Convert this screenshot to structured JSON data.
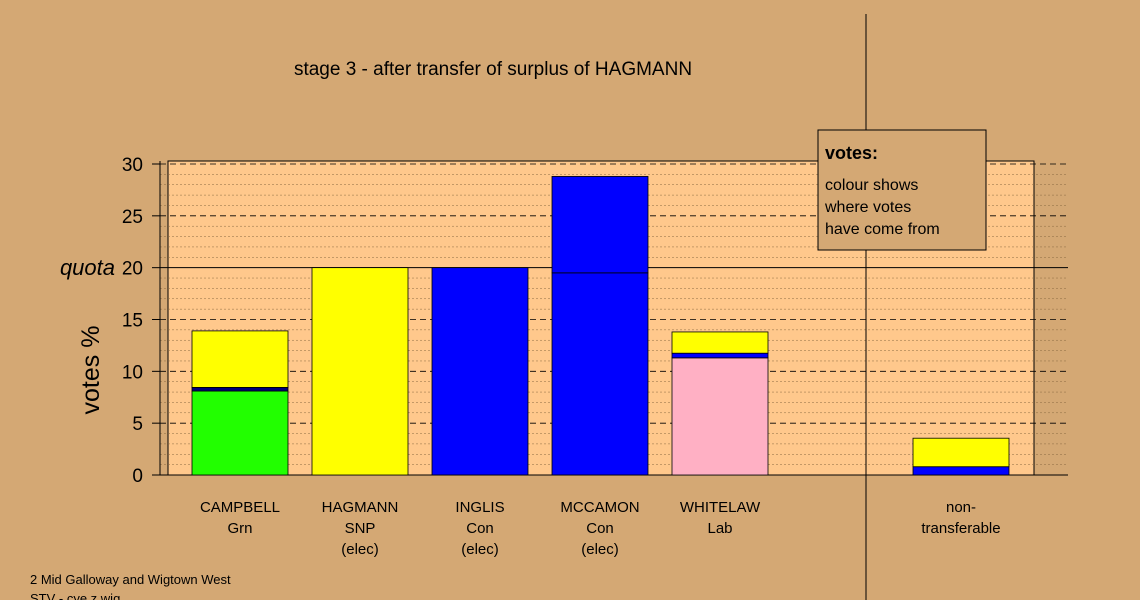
{
  "chart_data": {
    "type": "bar",
    "title": "stage 3 - after transfer of surplus of HAGMANN",
    "ylabel": "votes %",
    "ylim": [
      0,
      30
    ],
    "yticks": [
      0,
      5,
      10,
      15,
      20,
      25,
      30
    ],
    "quota_label": "quota",
    "quota_value": 20,
    "grid": true,
    "categories": [
      {
        "lines": [
          "CAMPBELL",
          "Grn",
          ""
        ]
      },
      {
        "lines": [
          "HAGMANN",
          "SNP",
          "(elec)"
        ]
      },
      {
        "lines": [
          "INGLIS",
          "Con",
          "(elec)"
        ]
      },
      {
        "lines": [
          "MCCAMON",
          "Con",
          "(elec)"
        ]
      },
      {
        "lines": [
          "WHITELAW",
          "Lab",
          ""
        ]
      },
      {
        "lines": [
          "non-",
          "transferable",
          ""
        ]
      }
    ],
    "bars": [
      {
        "segments": [
          {
            "value": 8.1,
            "color": "#22ff00"
          },
          {
            "value": 0.35,
            "color": "#00007a"
          },
          {
            "value": 5.45,
            "color": "#ffff00"
          }
        ]
      },
      {
        "segments": [
          {
            "value": 20.0,
            "color": "#ffff00"
          }
        ]
      },
      {
        "segments": [
          {
            "value": 20.0,
            "color": "#0000ff"
          }
        ]
      },
      {
        "segments": [
          {
            "value": 19.5,
            "color": "#0000ff"
          },
          {
            "value": 9.3,
            "color": "#0000ff"
          }
        ]
      },
      {
        "segments": [
          {
            "value": 11.3,
            "color": "#ffb0c4"
          },
          {
            "value": 0.45,
            "color": "#0000ff"
          },
          {
            "value": 2.05,
            "color": "#ffff00"
          }
        ]
      },
      {
        "segments": [
          {
            "value": 0.8,
            "color": "#0000ff"
          },
          {
            "value": 2.75,
            "color": "#ffff00"
          }
        ]
      }
    ],
    "legend": {
      "title": "votes:",
      "lines": [
        "colour shows",
        "where votes",
        "have come from"
      ],
      "position": "top-right"
    },
    "colors": {
      "background": "#d4a874",
      "plot_background": "#ffc88c"
    }
  },
  "footer": {
    "line1": "2 Mid Galloway and Wigtown West",
    "line2": "STV - cye z wig"
  }
}
